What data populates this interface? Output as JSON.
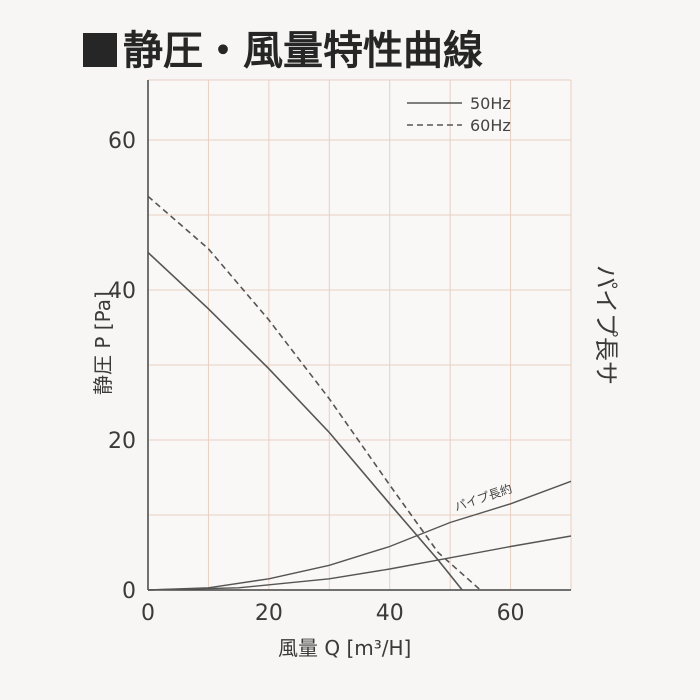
{
  "title": "静圧・風量特性曲線",
  "chart_data": {
    "type": "line",
    "title": "静圧・風量特性曲線",
    "xlabel": "風量 Q [m³/H]",
    "ylabel": "静圧 P [Pa]",
    "xlim": [
      0,
      70
    ],
    "ylim": [
      0,
      68
    ],
    "x_ticks": [
      "0",
      "20",
      "40",
      "60"
    ],
    "y_ticks": [
      "0",
      "20",
      "40",
      "60"
    ],
    "grid": true,
    "legend_position": "top-right",
    "series": [
      {
        "name": "50Hz",
        "style": "solid",
        "color": "#555555",
        "points": [
          [
            0,
            45
          ],
          [
            10,
            37.5
          ],
          [
            20,
            29.5
          ],
          [
            30,
            21
          ],
          [
            40,
            11.5
          ],
          [
            48,
            4
          ],
          [
            52,
            0
          ]
        ]
      },
      {
        "name": "60Hz",
        "style": "dashed",
        "color": "#555555",
        "points": [
          [
            0,
            52.5
          ],
          [
            10,
            45.5
          ],
          [
            20,
            36
          ],
          [
            30,
            25.5
          ],
          [
            40,
            14
          ],
          [
            48,
            5
          ],
          [
            55,
            0
          ]
        ]
      }
    ],
    "resistance_curves": [
      {
        "label": "パイプ長約",
        "points": [
          [
            0,
            0
          ],
          [
            10,
            0.3
          ],
          [
            20,
            1.5
          ],
          [
            30,
            3.3
          ],
          [
            40,
            5.8
          ],
          [
            50,
            9
          ],
          [
            60,
            11.5
          ],
          [
            70,
            14.5
          ]
        ]
      },
      {
        "label": "",
        "points": [
          [
            0,
            0
          ],
          [
            15,
            0.3
          ],
          [
            30,
            1.5
          ],
          [
            40,
            2.8
          ],
          [
            50,
            4.3
          ],
          [
            60,
            5.8
          ],
          [
            70,
            7.2
          ]
        ]
      }
    ],
    "side_label": "パイプ長サ"
  }
}
